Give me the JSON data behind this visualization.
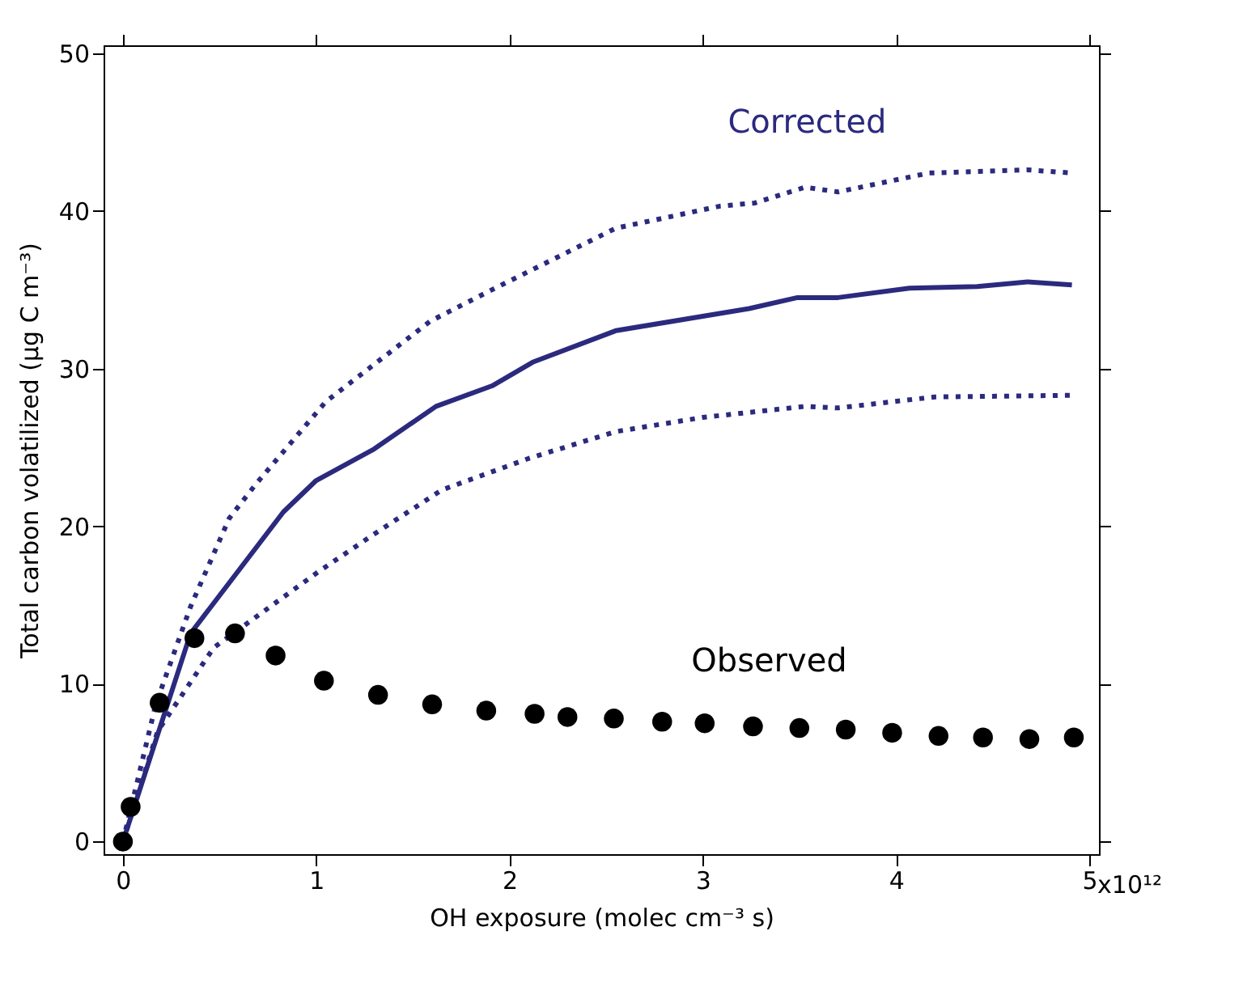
{
  "chart_data": {
    "type": "line",
    "xlabel": "OH exposure (molec cm⁻³ s)",
    "ylabel": "Total carbon volatilized (μg C m⁻³)",
    "xlim": [
      -0.1,
      5.05
    ],
    "ylim": [
      -0.8,
      50.5
    ],
    "xticks": [
      0,
      1,
      2,
      3,
      4,
      5
    ],
    "annotations": [
      "x10¹²"
    ],
    "yticks": [
      0,
      10,
      20,
      30,
      40,
      50
    ],
    "grid": false,
    "series": [
      {
        "name": "Corrected",
        "line_style": "solid",
        "color": "#2b2a7e",
        "x": [
          0,
          0.35,
          0.83,
          1.0,
          1.3,
          1.62,
          1.91,
          2.12,
          2.55,
          3.24,
          3.49,
          3.7,
          4.07,
          4.42,
          4.68,
          4.91
        ],
        "values": [
          0,
          13.2,
          20.9,
          22.9,
          24.9,
          27.6,
          28.9,
          30.4,
          32.4,
          33.8,
          34.5,
          34.5,
          35.1,
          35.2,
          35.5,
          35.3
        ]
      },
      {
        "line_style": "dotted",
        "color": "#2b2a7e",
        "x": [
          0,
          0.17,
          0.35,
          0.55,
          0.69,
          1.05,
          1.59,
          1.91,
          2.55,
          3.09,
          3.27,
          3.53,
          3.7,
          4.17,
          4.68,
          4.91
        ],
        "values": [
          0,
          8.7,
          14.9,
          20.5,
          22.7,
          27.9,
          33.0,
          35.0,
          38.9,
          40.3,
          40.5,
          41.5,
          41.2,
          42.4,
          42.6,
          42.4
        ]
      },
      {
        "line_style": "dotted",
        "color": "#2b2a7e",
        "x": [
          0,
          0.18,
          0.47,
          1.01,
          1.3,
          1.65,
          2.1,
          2.55,
          3.0,
          3.53,
          3.7,
          4.2,
          4.91
        ],
        "values": [
          0,
          7.0,
          12.3,
          17.1,
          19.5,
          22.3,
          24.3,
          26.0,
          26.9,
          27.6,
          27.5,
          28.2,
          28.3
        ]
      },
      {
        "name": "Observed",
        "type": "scatter",
        "marker": "circle",
        "color": "#000000",
        "x": [
          0,
          0.04,
          0.19,
          0.37,
          0.58,
          0.79,
          1.04,
          1.32,
          1.6,
          1.88,
          2.13,
          2.3,
          2.54,
          2.79,
          3.01,
          3.26,
          3.5,
          3.74,
          3.98,
          4.22,
          4.45,
          4.69,
          4.92
        ],
        "values": [
          0,
          2.2,
          8.8,
          12.9,
          13.2,
          11.8,
          10.2,
          9.3,
          8.7,
          8.3,
          8.1,
          7.9,
          7.8,
          7.6,
          7.5,
          7.3,
          7.2,
          7.1,
          6.9,
          6.7,
          6.6,
          6.5,
          6.6
        ]
      }
    ]
  }
}
